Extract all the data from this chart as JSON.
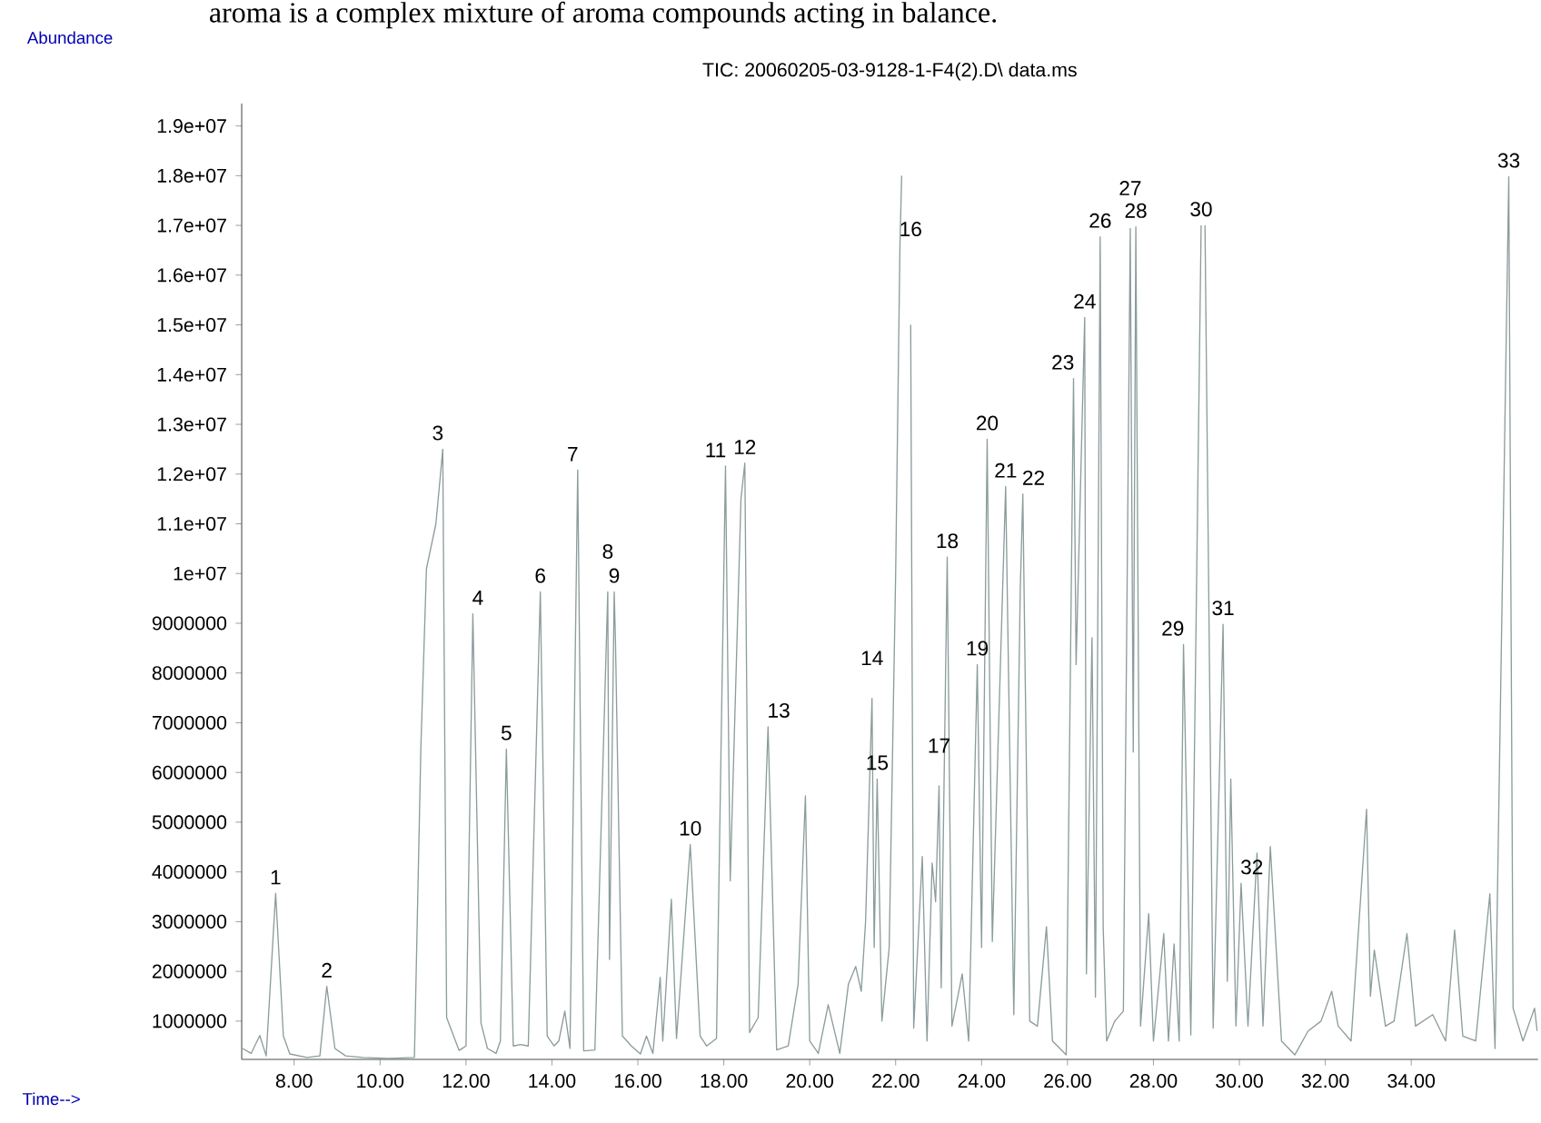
{
  "chart_data": {
    "type": "line",
    "title": "TIC: 20060205-03-9128-1-F4(2).D\\ data.ms",
    "xlabel": "Time-->",
    "ylabel": "Abundance",
    "xlim": [
      6.78,
      36.95
    ],
    "ylim": [
      230000,
      19450000
    ],
    "xticks": [
      {
        "value": 8,
        "label": "8.00"
      },
      {
        "value": 10,
        "label": "10.00"
      },
      {
        "value": 12,
        "label": "12.00"
      },
      {
        "value": 14,
        "label": "14.00"
      },
      {
        "value": 16,
        "label": "16.00"
      },
      {
        "value": 18,
        "label": "18.00"
      },
      {
        "value": 20,
        "label": "20.00"
      },
      {
        "value": 22,
        "label": "22.00"
      },
      {
        "value": 24,
        "label": "24.00"
      },
      {
        "value": 26,
        "label": "26.00"
      },
      {
        "value": 28,
        "label": "28.00"
      },
      {
        "value": 30,
        "label": "30.00"
      },
      {
        "value": 32,
        "label": "32.00"
      },
      {
        "value": 34,
        "label": "34.00"
      }
    ],
    "yticks": [
      1000000,
      2000000,
      3000000,
      4000000,
      5000000,
      6000000,
      7000000,
      8000000,
      9000000,
      {
        "value": 10000000,
        "label": "1e+07"
      },
      {
        "value": 11000000,
        "label": "1.1e+07"
      },
      {
        "value": 12000000,
        "label": "1.2e+07"
      },
      {
        "value": 13000000,
        "label": "1.3e+07"
      },
      {
        "value": 14000000,
        "label": "1.4e+07"
      },
      {
        "value": 15000000,
        "label": "1.5e+07"
      },
      {
        "value": 16000000,
        "label": "1.6e+07"
      },
      {
        "value": 17000000,
        "label": "1.7e+07"
      },
      {
        "value": 18000000,
        "label": "1.8e+07"
      },
      {
        "value": 19000000,
        "label": "1.9e+07"
      }
    ],
    "line_style": "solid",
    "series": [
      {
        "color": "#8c9c9c",
        "x": [
          6.8,
          7.0,
          7.2,
          7.35,
          7.57,
          7.75,
          7.9,
          8.3,
          8.6,
          8.76,
          8.95,
          9.2,
          9.6,
          10.2,
          10.8,
          10.95,
          11.08,
          11.3,
          11.46,
          11.55,
          11.84,
          12.0,
          12.16,
          12.35,
          12.5,
          12.7,
          12.8,
          12.94,
          13.1,
          13.27,
          13.45,
          13.73,
          13.89,
          14.05,
          14.16,
          14.3,
          14.42,
          14.6,
          14.74,
          15.0,
          15.3,
          15.34,
          15.45,
          15.48,
          15.64,
          15.85,
          16.06,
          16.2,
          16.35,
          16.52,
          16.58,
          16.78,
          16.9,
          17.22,
          17.45,
          17.6,
          17.83,
          18.04,
          18.15,
          18.4,
          18.49,
          18.6,
          18.8,
          19.03,
          19.23,
          19.5,
          19.73,
          19.9,
          20.0,
          20.2,
          20.43,
          20.7,
          20.9,
          21.07,
          21.2,
          21.3,
          21.45,
          21.5,
          21.57,
          21.68,
          21.85,
          22.0,
          22.1,
          22.14,
          22.15,
          22.3,
          22.35,
          22.42,
          22.62,
          22.73,
          22.85,
          22.93,
          23.01,
          23.06,
          23.2,
          23.31,
          23.55,
          23.7,
          23.9,
          24.0,
          24.13,
          24.25,
          24.56,
          24.75,
          24.9,
          24.96,
          25.12,
          25.3,
          25.51,
          25.65,
          25.97,
          26.14,
          26.2,
          26.4,
          26.44,
          26.57,
          26.65,
          26.76,
          26.83,
          26.91,
          27.1,
          27.3,
          27.46,
          27.53,
          27.59,
          27.7,
          27.89,
          28.0,
          28.24,
          28.35,
          28.48,
          28.6,
          28.7,
          28.87,
          29.11,
          29.15,
          29.2,
          29.39,
          29.62,
          29.72,
          29.8,
          29.92,
          30.04,
          30.2,
          30.41,
          30.55,
          30.72,
          30.98,
          31.29,
          31.6,
          31.9,
          32.15,
          32.3,
          32.6,
          32.96,
          33.05,
          33.14,
          33.4,
          33.6,
          33.9,
          34.1,
          34.5,
          34.8,
          35.01,
          35.2,
          35.5,
          35.83,
          35.95,
          36.27,
          36.37,
          36.6,
          36.87,
          36.93
        ],
        "values": [
          450000,
          350000,
          710000,
          300000,
          3570000,
          700000,
          340000,
          270000,
          300000,
          1700000,
          450000,
          300000,
          270000,
          250000,
          270000,
          6500000,
          10100000,
          11000000,
          12500000,
          1070000,
          410000,
          500000,
          9190000,
          960000,
          450000,
          350000,
          600000,
          6470000,
          500000,
          530000,
          500000,
          9630000,
          700000,
          500000,
          600000,
          1200000,
          450000,
          12080000,
          400000,
          420000,
          9630000,
          2240000,
          9630000,
          8600000,
          700000,
          500000,
          340000,
          700000,
          350000,
          1880000,
          600000,
          3450000,
          650000,
          4550000,
          700000,
          500000,
          650000,
          12160000,
          3820000,
          11500000,
          12220000,
          770000,
          1070000,
          6920000,
          420000,
          500000,
          1740000,
          5530000,
          600000,
          350000,
          1330000,
          350000,
          1740000,
          2100000,
          1600000,
          3000000,
          7490000,
          2480000,
          5870000,
          1000000,
          2480000,
          10000000,
          16600000,
          18000000,
          null,
          null,
          15000000,
          860000,
          4310000,
          600000,
          4180000,
          3400000,
          5730000,
          1670000,
          10330000,
          900000,
          1950000,
          600000,
          8170000,
          2480000,
          12700000,
          2600000,
          11750000,
          1130000,
          9660000,
          11600000,
          1000000,
          900000,
          2900000,
          600000,
          320000,
          13920000,
          8170000,
          15150000,
          1950000,
          8710000,
          1480000,
          16770000,
          2900000,
          600000,
          1000000,
          1200000,
          16940000,
          6410000,
          16970000,
          900000,
          3160000,
          600000,
          2760000,
          600000,
          2550000,
          600000,
          8570000,
          720000,
          17000000,
          null,
          17000000,
          860000,
          8980000,
          1800000,
          5870000,
          900000,
          3770000,
          900000,
          4380000,
          900000,
          4510000,
          600000,
          320000,
          800000,
          1000000,
          1600000,
          900000,
          600000,
          5260000,
          1500000,
          2430000,
          900000,
          1000000,
          2760000,
          900000,
          1130000,
          600000,
          2830000,
          700000,
          600000,
          3560000,
          450000,
          17980000,
          1260000,
          600000,
          1260000,
          800000
        ]
      }
    ],
    "annotations": [
      "aroma is a complex mixture of aroma compounds acting in balance.",
      {
        "text": "1",
        "x": 7.57,
        "y": 3570000
      },
      {
        "text": "2",
        "x": 8.76,
        "y": 1700000
      },
      {
        "text": "3",
        "x": 11.46,
        "y": 12500000
      },
      {
        "text": "4",
        "x": 12.16,
        "y": 9190000
      },
      {
        "text": "5",
        "x": 12.94,
        "y": 6470000
      },
      {
        "text": "6",
        "x": 13.73,
        "y": 9630000
      },
      {
        "text": "7",
        "x": 14.6,
        "y": 12080000
      },
      {
        "text": "8",
        "x": 15.3,
        "y": 9630000
      },
      {
        "text": "9",
        "x": 15.45,
        "y": 9630000
      },
      {
        "text": "10",
        "x": 17.22,
        "y": 4550000
      },
      {
        "text": "11",
        "x": 18.04,
        "y": 12160000
      },
      {
        "text": "12",
        "x": 18.49,
        "y": 12220000
      },
      {
        "text": "13",
        "x": 19.03,
        "y": 6920000
      },
      {
        "text": "14",
        "x": 21.45,
        "y": 7490000
      },
      {
        "text": "15",
        "x": 21.57,
        "y": 5870000
      },
      {
        "text": "16",
        "x": 22.1,
        "y": 16600000
      },
      {
        "text": "17",
        "x": 23.01,
        "y": 5730000
      },
      {
        "text": "18",
        "x": 23.2,
        "y": 10330000
      },
      {
        "text": "19",
        "x": 23.9,
        "y": 8170000
      },
      {
        "text": "20",
        "x": 24.13,
        "y": 12700000
      },
      {
        "text": "21",
        "x": 24.56,
        "y": 11750000
      },
      {
        "text": "22",
        "x": 24.96,
        "y": 11600000
      },
      {
        "text": "23",
        "x": 26.14,
        "y": 13920000
      },
      {
        "text": "24",
        "x": 26.4,
        "y": 15150000
      },
      {
        "text": "26",
        "x": 26.76,
        "y": 16770000
      },
      {
        "text": "27",
        "x": 27.46,
        "y": 16940000
      },
      {
        "text": "28",
        "x": 27.59,
        "y": 16970000
      },
      {
        "text": "29",
        "x": 28.7,
        "y": 8570000
      },
      {
        "text": "30",
        "x": 29.11,
        "y": 17000000
      },
      {
        "text": "31",
        "x": 29.62,
        "y": 8980000
      },
      {
        "text": "32",
        "x": 30.04,
        "y": 3770000
      },
      {
        "text": "33",
        "x": 36.27,
        "y": 17980000
      }
    ]
  }
}
